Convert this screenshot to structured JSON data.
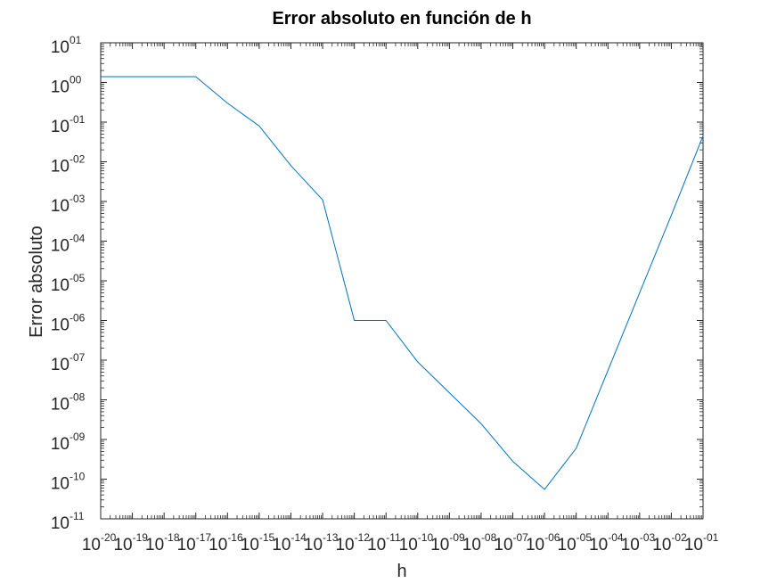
{
  "chart_data": {
    "type": "line",
    "title": "Error absoluto en función de h",
    "xlabel": "h",
    "ylabel": "Error absoluto",
    "xscale": "log",
    "yscale": "log",
    "xlim": [
      1e-20,
      0.1
    ],
    "ylim": [
      1e-11,
      10
    ],
    "grid": false,
    "legend": "none",
    "x_ticks": [
      {
        "value": 1e-20,
        "base": "10",
        "exp": "-20"
      },
      {
        "value": 1e-19,
        "base": "10",
        "exp": "-19"
      },
      {
        "value": 1e-18,
        "base": "10",
        "exp": "-18"
      },
      {
        "value": 1e-17,
        "base": "10",
        "exp": "-17"
      },
      {
        "value": 1e-16,
        "base": "10",
        "exp": "-16"
      },
      {
        "value": 1e-15,
        "base": "10",
        "exp": "-15"
      },
      {
        "value": 1e-14,
        "base": "10",
        "exp": "-14"
      },
      {
        "value": 1e-13,
        "base": "10",
        "exp": "-13"
      },
      {
        "value": 1e-12,
        "base": "10",
        "exp": "-12"
      },
      {
        "value": 1e-11,
        "base": "10",
        "exp": "-11"
      },
      {
        "value": 1e-10,
        "base": "10",
        "exp": "-10"
      },
      {
        "value": 1e-09,
        "base": "10",
        "exp": "-09"
      },
      {
        "value": 1e-08,
        "base": "10",
        "exp": "-08"
      },
      {
        "value": 1e-07,
        "base": "10",
        "exp": "-07"
      },
      {
        "value": 1e-06,
        "base": "10",
        "exp": "-06"
      },
      {
        "value": 1e-05,
        "base": "10",
        "exp": "-05"
      },
      {
        "value": 0.0001,
        "base": "10",
        "exp": "-04"
      },
      {
        "value": 0.001,
        "base": "10",
        "exp": "-03"
      },
      {
        "value": 0.01,
        "base": "10",
        "exp": "-02"
      },
      {
        "value": 0.1,
        "base": "10",
        "exp": "-01"
      }
    ],
    "y_ticks": [
      {
        "value": 10,
        "base": "10",
        "exp": "01"
      },
      {
        "value": 1,
        "base": "10",
        "exp": "00"
      },
      {
        "value": 0.1,
        "base": "10",
        "exp": "-01"
      },
      {
        "value": 0.01,
        "base": "10",
        "exp": "-02"
      },
      {
        "value": 0.001,
        "base": "10",
        "exp": "-03"
      },
      {
        "value": 0.0001,
        "base": "10",
        "exp": "-04"
      },
      {
        "value": 1e-05,
        "base": "10",
        "exp": "-05"
      },
      {
        "value": 1e-06,
        "base": "10",
        "exp": "-06"
      },
      {
        "value": 1e-07,
        "base": "10",
        "exp": "-07"
      },
      {
        "value": 1e-08,
        "base": "10",
        "exp": "-08"
      },
      {
        "value": 1e-09,
        "base": "10",
        "exp": "-09"
      },
      {
        "value": 1e-10,
        "base": "10",
        "exp": "-10"
      },
      {
        "value": 1e-11,
        "base": "10",
        "exp": "-11"
      }
    ],
    "series": [
      {
        "color": "#0072bd",
        "x": [
          1e-20,
          1e-19,
          1e-18,
          1e-17,
          1e-16,
          1e-15,
          1e-14,
          1e-13,
          1e-12,
          1e-11,
          1e-10,
          1e-09,
          1e-08,
          1e-07,
          1e-06,
          1e-05,
          0.0001,
          0.001,
          0.01,
          0.1
        ],
        "y": [
          1.4,
          1.4,
          1.4,
          1.4,
          0.3,
          0.08,
          0.008,
          0.0011,
          1e-06,
          1e-06,
          9e-08,
          1.5e-08,
          2.5e-09,
          2.8e-10,
          5.5e-11,
          6e-10,
          5.5e-08,
          5e-06,
          0.00045,
          0.045
        ]
      }
    ]
  }
}
